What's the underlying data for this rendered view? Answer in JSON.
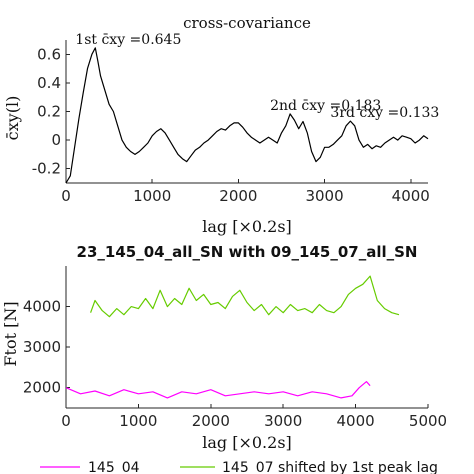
{
  "chart_data": [
    {
      "type": "line",
      "title": "cross-covariance",
      "xlabel": "lag [×0.2s]",
      "ylabel": "c̄xy(l)",
      "xlim": [
        0,
        4200
      ],
      "ylim": [
        -0.3,
        0.7
      ],
      "x_ticks": [
        0,
        1000,
        2000,
        3000,
        4000
      ],
      "x_tick_labels": [
        "0",
        "1000",
        "2000",
        "3000",
        "4000"
      ],
      "y_ticks": [
        -0.2,
        0,
        0.2,
        0.4,
        0.6
      ],
      "y_tick_labels": [
        "-0.2",
        "0",
        "0.2",
        "0.4",
        "0.6"
      ],
      "color": "#000000",
      "grid": false,
      "series": [
        {
          "x": [
            0,
            50,
            100,
            150,
            200,
            250,
            300,
            340,
            370,
            400,
            450,
            500,
            550,
            600,
            650,
            700,
            750,
            800,
            850,
            900,
            950,
            1000,
            1050,
            1100,
            1150,
            1200,
            1250,
            1300,
            1350,
            1400,
            1450,
            1500,
            1550,
            1600,
            1650,
            1700,
            1750,
            1800,
            1850,
            1900,
            1950,
            2000,
            2050,
            2100,
            2150,
            2200,
            2250,
            2300,
            2350,
            2400,
            2450,
            2500,
            2550,
            2600,
            2650,
            2700,
            2750,
            2800,
            2850,
            2900,
            2950,
            3000,
            3050,
            3100,
            3150,
            3200,
            3250,
            3300,
            3350,
            3400,
            3450,
            3500,
            3550,
            3600,
            3650,
            3700,
            3750,
            3800,
            3850,
            3900,
            3950,
            4000,
            4050,
            4100,
            4150,
            4200
          ],
          "y": [
            -0.3,
            -0.25,
            -0.05,
            0.15,
            0.33,
            0.5,
            0.6,
            0.645,
            0.55,
            0.45,
            0.35,
            0.25,
            0.2,
            0.1,
            0.0,
            -0.05,
            -0.08,
            -0.1,
            -0.08,
            -0.05,
            -0.02,
            0.03,
            0.06,
            0.08,
            0.05,
            0.0,
            -0.05,
            -0.1,
            -0.13,
            -0.15,
            -0.11,
            -0.07,
            -0.05,
            -0.02,
            0.0,
            0.03,
            0.06,
            0.08,
            0.07,
            0.1,
            0.12,
            0.12,
            0.09,
            0.05,
            0.02,
            0.0,
            -0.02,
            0.0,
            0.02,
            0.0,
            -0.02,
            0.05,
            0.1,
            0.183,
            0.14,
            0.08,
            0.13,
            0.05,
            -0.08,
            -0.15,
            -0.12,
            -0.05,
            -0.05,
            -0.03,
            0.0,
            0.03,
            0.1,
            0.133,
            0.1,
            0.0,
            -0.05,
            -0.03,
            -0.06,
            -0.04,
            -0.05,
            -0.02,
            0.0,
            0.02,
            0.0,
            0.03,
            0.02,
            0.01,
            -0.02,
            0.0,
            0.03,
            0.01
          ]
        }
      ],
      "annotations": [
        {
          "text": "1st c̄xy =0.645",
          "x": 340,
          "y": 0.645
        },
        {
          "text": "2nd c̄xy =0.183",
          "x": 2600,
          "y": 0.183
        },
        {
          "text": "3rd c̄xy =0.133",
          "x": 3300,
          "y": 0.133
        }
      ]
    },
    {
      "type": "line",
      "title": "23_145_04_all_SN with 09_145_07_all_SN",
      "xlabel": "lag [×0.2s]",
      "ylabel": "Ftot [N]",
      "xlim": [
        0,
        5000
      ],
      "ylim": [
        1500,
        5000
      ],
      "x_ticks": [
        0,
        1000,
        2000,
        3000,
        4000,
        5000
      ],
      "x_tick_labels": [
        "0",
        "1000",
        "2000",
        "3000",
        "4000",
        "5000"
      ],
      "y_ticks": [
        2000,
        3000,
        4000
      ],
      "y_tick_labels": [
        "2000",
        "3000",
        "4000"
      ],
      "grid": false,
      "series": [
        {
          "name": "145_04",
          "color": "#ff00ff",
          "x": [
            0,
            200,
            400,
            600,
            800,
            1000,
            1200,
            1400,
            1600,
            1800,
            2000,
            2200,
            2400,
            2600,
            2800,
            3000,
            3200,
            3400,
            3600,
            3800,
            3950,
            4050,
            4150,
            4200
          ],
          "y": [
            2000,
            1850,
            1920,
            1800,
            1950,
            1850,
            1900,
            1750,
            1900,
            1850,
            1950,
            1800,
            1850,
            1900,
            1850,
            1900,
            1800,
            1900,
            1850,
            1750,
            1800,
            2000,
            2150,
            2050
          ]
        },
        {
          "name": "145_07 shifted by 1st peak lag",
          "color": "#66cc00",
          "x": [
            340,
            400,
            500,
            600,
            700,
            800,
            900,
            1000,
            1100,
            1200,
            1300,
            1400,
            1500,
            1600,
            1700,
            1800,
            1900,
            2000,
            2100,
            2200,
            2300,
            2400,
            2500,
            2600,
            2700,
            2800,
            2900,
            3000,
            3100,
            3200,
            3300,
            3400,
            3500,
            3600,
            3700,
            3800,
            3900,
            4000,
            4100,
            4200,
            4300,
            4400,
            4500,
            4600
          ],
          "y": [
            3850,
            4150,
            3900,
            3750,
            3950,
            3800,
            4000,
            3950,
            4200,
            3950,
            4400,
            4000,
            4200,
            4050,
            4450,
            4150,
            4300,
            4050,
            4100,
            3950,
            4250,
            4400,
            4100,
            3900,
            4050,
            3800,
            4000,
            3850,
            4050,
            3900,
            3950,
            3850,
            4050,
            3900,
            3850,
            4000,
            4300,
            4450,
            4550,
            4750,
            4150,
            3950,
            3850,
            3800
          ]
        }
      ],
      "legend_position": "bottom"
    }
  ]
}
